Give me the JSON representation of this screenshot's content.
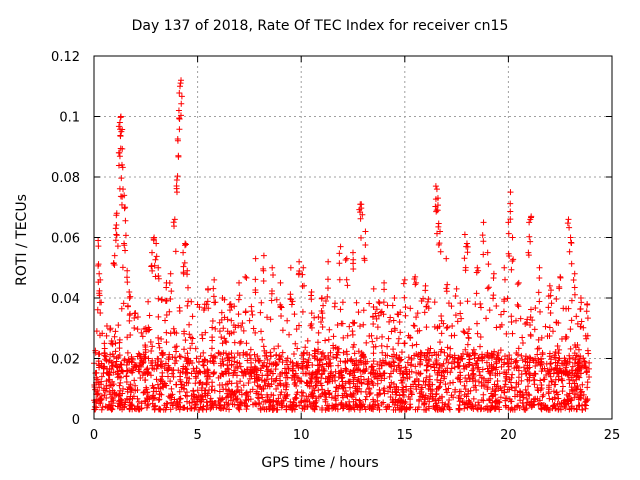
{
  "chart_data": {
    "type": "scatter",
    "title": "Day 137 of 2018, Rate Of TEC Index for receiver cn15",
    "xlabel": "GPS time / hours",
    "ylabel": "ROTI / TECUs",
    "xlim": [
      0,
      25
    ],
    "ylim": [
      0,
      0.12
    ],
    "xticks": [
      0,
      5,
      10,
      15,
      20,
      25
    ],
    "xtick_labels": [
      "0",
      "5",
      "10",
      "15",
      "20",
      "25"
    ],
    "yticks": [
      0,
      0.02,
      0.04,
      0.06,
      0.08,
      0.1,
      0.12
    ],
    "ytick_labels": [
      "0",
      "0.02",
      "0.04",
      "0.06",
      "0.08",
      "0.1",
      "0.12"
    ],
    "grid": true,
    "marker": "+",
    "series": [
      {
        "name": "ROTI",
        "color": "#ff0000",
        "points": [
          [
            0.1,
            0.012
          ],
          [
            0.2,
            0.059
          ],
          [
            0.25,
            0.048
          ],
          [
            0.3,
            0.046
          ],
          [
            0.5,
            0.025
          ],
          [
            0.8,
            0.03
          ],
          [
            1.0,
            0.054
          ],
          [
            1.05,
            0.063
          ],
          [
            1.1,
            0.068
          ],
          [
            1.2,
            0.088
          ],
          [
            1.25,
            0.098
          ],
          [
            1.3,
            0.1
          ],
          [
            1.32,
            0.095
          ],
          [
            1.35,
            0.084
          ],
          [
            1.4,
            0.076
          ],
          [
            1.5,
            0.07
          ],
          [
            1.45,
            0.058
          ],
          [
            1.6,
            0.049
          ],
          [
            1.7,
            0.042
          ],
          [
            2.0,
            0.035
          ],
          [
            2.5,
            0.03
          ],
          [
            2.8,
            0.055
          ],
          [
            2.9,
            0.06
          ],
          [
            3.0,
            0.058
          ],
          [
            3.1,
            0.05
          ],
          [
            3.5,
            0.045
          ],
          [
            3.7,
            0.048
          ],
          [
            3.9,
            0.066
          ],
          [
            4.0,
            0.079
          ],
          [
            4.05,
            0.092
          ],
          [
            4.1,
            0.102
          ],
          [
            4.15,
            0.11
          ],
          [
            4.2,
            0.112
          ],
          [
            4.3,
            0.055
          ],
          [
            4.4,
            0.058
          ],
          [
            4.5,
            0.049
          ],
          [
            4.6,
            0.028
          ],
          [
            5.5,
            0.043
          ],
          [
            5.8,
            0.046
          ],
          [
            6.2,
            0.04
          ],
          [
            6.6,
            0.038
          ],
          [
            7.0,
            0.045
          ],
          [
            7.3,
            0.047
          ],
          [
            7.8,
            0.053
          ],
          [
            8.2,
            0.054
          ],
          [
            8.6,
            0.05
          ],
          [
            9.0,
            0.045
          ],
          [
            9.5,
            0.05
          ],
          [
            9.9,
            0.052
          ],
          [
            10.1,
            0.05
          ],
          [
            10.5,
            0.042
          ],
          [
            11.0,
            0.04
          ],
          [
            11.3,
            0.052
          ],
          [
            11.9,
            0.057
          ],
          [
            12.2,
            0.053
          ],
          [
            12.5,
            0.055
          ],
          [
            12.85,
            0.071
          ],
          [
            12.9,
            0.071
          ],
          [
            13.1,
            0.062
          ],
          [
            13.5,
            0.043
          ],
          [
            14.0,
            0.045
          ],
          [
            14.5,
            0.04
          ],
          [
            15.0,
            0.046
          ],
          [
            15.5,
            0.047
          ],
          [
            16.0,
            0.044
          ],
          [
            16.5,
            0.077
          ],
          [
            16.55,
            0.076
          ],
          [
            16.6,
            0.073
          ],
          [
            16.7,
            0.062
          ],
          [
            17.0,
            0.053
          ],
          [
            17.5,
            0.043
          ],
          [
            17.9,
            0.061
          ],
          [
            18.0,
            0.058
          ],
          [
            18.5,
            0.05
          ],
          [
            18.8,
            0.065
          ],
          [
            19.0,
            0.055
          ],
          [
            19.3,
            0.048
          ],
          [
            19.8,
            0.05
          ],
          [
            20.0,
            0.065
          ],
          [
            20.1,
            0.075
          ],
          [
            20.2,
            0.06
          ],
          [
            20.5,
            0.045
          ],
          [
            21.0,
            0.065
          ],
          [
            21.1,
            0.067
          ],
          [
            21.5,
            0.05
          ],
          [
            22.0,
            0.044
          ],
          [
            22.5,
            0.047
          ],
          [
            22.9,
            0.066
          ],
          [
            23.0,
            0.06
          ],
          [
            23.2,
            0.048
          ],
          [
            23.5,
            0.04
          ],
          [
            23.8,
            0.038
          ]
        ],
        "dense_band": {
          "x_range": [
            0,
            23.9
          ],
          "lower": 0.003,
          "upper": 0.04,
          "typical": 0.012,
          "note": "thousands of overlapping + markers between 0.003 and 0.04"
        }
      }
    ]
  }
}
